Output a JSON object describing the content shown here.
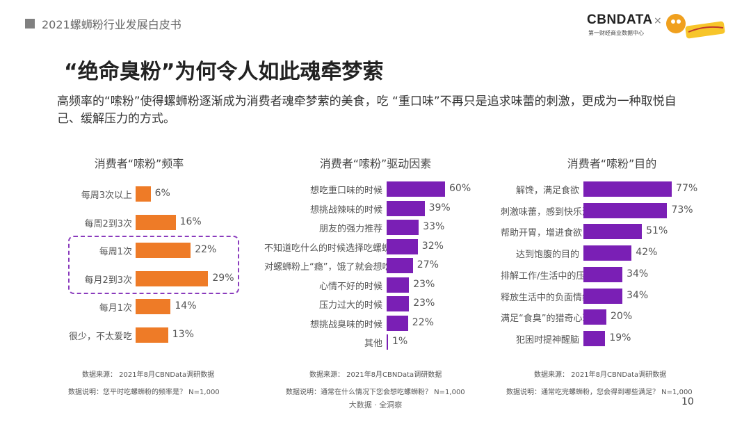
{
  "header": {
    "report_title": "2021螺蛳粉行业发展白皮书"
  },
  "brand": {
    "name": "CBNDATA",
    "subtitle": "第一财经商业数据中心",
    "separator": "×",
    "partner_logo_name": "好欢螺"
  },
  "page": {
    "title": "“绝命臭粉”为何令人如此魂牵梦萦",
    "intro": "高频率的“嗦粉”使得螺蛳粉逐渐成为消费者魂牵梦萦的美食，吃 “重口味”不再只是追求味蕾的刺激，更成为一种取悦自己、缓解压力的方式。",
    "footer_center": "大数据 · 全洞察",
    "page_number": "10"
  },
  "colors": {
    "orange": "#ee7b27",
    "purple": "#7a1fb5",
    "dash": "#8a3bbd"
  },
  "chart_data": [
    {
      "type": "bar",
      "title": "消费者“嗦粉”频率",
      "categories": [
        "每周3次以上",
        "每周2到3次",
        "每周1次",
        "每月2到3次",
        "每月1次",
        "很少，不太爱吃"
      ],
      "values": [
        6,
        16,
        22,
        29,
        14,
        13
      ],
      "value_labels": [
        "6%",
        "16%",
        "22%",
        "29%",
        "14%",
        "13%"
      ],
      "highlighted": [
        "每周1次",
        "每月2到3次"
      ],
      "source": "数据来源：  2021年8月CBNData调研数据",
      "note": "数据说明：您平时吃螺蛳粉的频率是？ N=1,000"
    },
    {
      "type": "bar",
      "title": "消费者“嗦粉”驱动因素",
      "categories": [
        "想吃重口味的时候",
        "想挑战辣味的时候",
        "朋友的强力推荐",
        "不知道吃什么的时候选择吃螺蛳粉",
        "对螺蛳粉上“瘾”，饿了就会想吃",
        "心情不好的时候",
        "压力过大的时候",
        "想挑战臭味的时候",
        "其他"
      ],
      "values": [
        60,
        39,
        33,
        32,
        27,
        23,
        23,
        22,
        1
      ],
      "value_labels": [
        "60%",
        "39%",
        "33%",
        "32%",
        "27%",
        "23%",
        "23%",
        "22%",
        "1%"
      ],
      "source": "数据来源：  2021年8月CBNData调研数据",
      "note": "数据说明：通常在什么情况下您会想吃螺蛳粉？ N=1,000"
    },
    {
      "type": "bar",
      "title": "消费者“嗦粉”目的",
      "categories": [
        "解馋，满足食欲",
        "刺激味蕾，感到快乐满足",
        "帮助开胃，增进食欲",
        "达到饱腹的目的",
        "排解工作/生活中的压力",
        "释放生活中的负面情绪",
        "满足“食臭”的猎奇心理",
        "犯困时提神醒脑"
      ],
      "values": [
        77,
        73,
        51,
        42,
        34,
        34,
        20,
        19
      ],
      "value_labels": [
        "77%",
        "73%",
        "51%",
        "42%",
        "34%",
        "34%",
        "20%",
        "19%"
      ],
      "source": "数据来源：  2021年8月CBNData调研数据",
      "note": "数据说明：通常吃完螺蛳粉，您会得到哪些满足？ N=1,000"
    }
  ]
}
